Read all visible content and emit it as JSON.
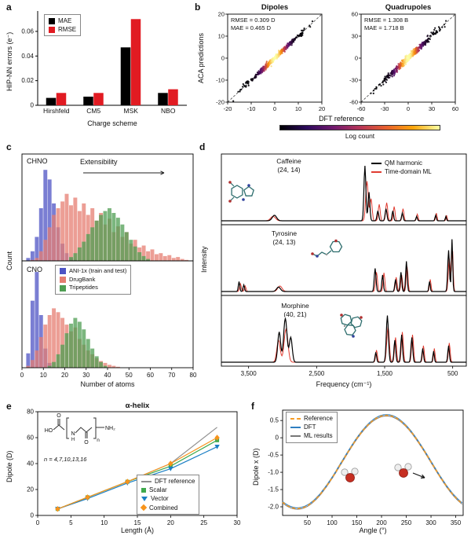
{
  "panels": {
    "a": {
      "label": "a"
    },
    "b": {
      "label": "b",
      "colorbar_label": "Log count",
      "colorbar_colors": [
        "#000004",
        "#2c0a5c",
        "#71196e",
        "#b63458",
        "#e8602d",
        "#fca50a",
        "#fcffa4"
      ]
    },
    "c": {
      "label": "c",
      "arrow_label": "Extensibility"
    },
    "d": {
      "label": "d"
    },
    "e": {
      "label": "e",
      "formula_note": "n = 4,7,10,13,16",
      "formula_atoms": {
        "ho": "HO",
        "o": "O",
        "n_atom": "N",
        "h": "H",
        "nh2": "NH₂",
        "sub": "n"
      }
    },
    "f": {
      "label": "f"
    }
  },
  "chart_data": [
    {
      "id": "a-charge-errors",
      "type": "bar",
      "xlabel": "Charge scheme",
      "ylabel": "HIP-NN errors (e⁻)",
      "categories": [
        "Hirshfeld",
        "CM5",
        "MSK",
        "NBO"
      ],
      "series": [
        {
          "name": "MAE",
          "color": "#000000",
          "values": [
            0.006,
            0.007,
            0.047,
            0.01
          ]
        },
        {
          "name": "RMSE",
          "color": "#e11b22",
          "values": [
            0.01,
            0.01,
            0.07,
            0.013
          ]
        }
      ],
      "ylim": [
        0,
        0.074
      ],
      "yticks": [
        0,
        0.02,
        0.04,
        0.06
      ],
      "ytick_labels": [
        "0",
        "0.02",
        "0.04",
        "0.06"
      ]
    },
    {
      "id": "b-dipoles",
      "type": "scatter",
      "title": "Dipoles",
      "xlabel": "DFT reference",
      "ylabel": "ACA predictions",
      "xlim": [
        -20,
        20
      ],
      "ylim": [
        -20,
        20
      ],
      "xticks": [
        -20,
        -10,
        0,
        10,
        20
      ],
      "yticks": [
        -20,
        -10,
        0,
        10,
        20
      ],
      "annotation": [
        "RMSE = 0.309 D",
        "MAE = 0.465 D"
      ],
      "identity_line": true,
      "cloud": {
        "n": 420,
        "spread": 6.5,
        "noise": 0.55,
        "seed": 7
      }
    },
    {
      "id": "b-quadrupoles",
      "type": "scatter",
      "title": "Quadrupoles",
      "xlabel": "DFT reference",
      "ylabel": "ACA predictions",
      "xlim": [
        -60,
        60
      ],
      "ylim": [
        -60,
        60
      ],
      "xticks": [
        -60,
        -30,
        0,
        30,
        60
      ],
      "yticks": [
        -60,
        -30,
        0,
        30,
        60
      ],
      "annotation": [
        "RMSE = 1.308 B",
        "MAE = 1.718 B"
      ],
      "identity_line": true,
      "cloud": {
        "n": 420,
        "spread": 19,
        "noise": 2.2,
        "seed": 13
      }
    },
    {
      "id": "c-chno",
      "type": "histogram",
      "tag": "CHNO",
      "ylabel": "Count",
      "xlim": [
        0,
        80
      ],
      "bin_width": 2,
      "ymax": 105,
      "series": [
        {
          "name": "ANI-1x (train and test)",
          "color": "#4d53c4",
          "counts": [
            0,
            3,
            10,
            25,
            55,
            95,
            85,
            60,
            35,
            18,
            8,
            3,
            1,
            0,
            0,
            0,
            0,
            0,
            0,
            0,
            0,
            0,
            0,
            0,
            0,
            0,
            0,
            0,
            0,
            0,
            0,
            0,
            0,
            0,
            0,
            0,
            0,
            0,
            0,
            0
          ]
        },
        {
          "name": "DrugBank",
          "color": "#e57e72",
          "counts": [
            0,
            0,
            1,
            3,
            10,
            22,
            35,
            48,
            55,
            62,
            70,
            58,
            66,
            52,
            60,
            48,
            55,
            42,
            50,
            38,
            44,
            30,
            36,
            25,
            30,
            18,
            22,
            14,
            16,
            10,
            12,
            7,
            8,
            5,
            6,
            3,
            4,
            2,
            1,
            0
          ]
        },
        {
          "name": "Tripeptides",
          "color": "#4f9e53",
          "counts": [
            0,
            0,
            0,
            0,
            0,
            0,
            0,
            0,
            0,
            0,
            0,
            4,
            8,
            14,
            20,
            28,
            35,
            42,
            48,
            52,
            55,
            50,
            45,
            38,
            30,
            22,
            15,
            9,
            5,
            2,
            0,
            0,
            0,
            0,
            0,
            0,
            0,
            0,
            0,
            0
          ]
        }
      ]
    },
    {
      "id": "c-cno",
      "type": "histogram",
      "tag": "CNO",
      "xlabel": "Number of atoms",
      "xlim": [
        0,
        80
      ],
      "bin_width": 2,
      "ymax": 105,
      "xticks": [
        0,
        10,
        20,
        30,
        40,
        50,
        60,
        70,
        80
      ],
      "series": [
        {
          "name": "ANI-1x (train and test)",
          "color": "#4d53c4",
          "counts": [
            0,
            15,
            70,
            100,
            55,
            20,
            5,
            0,
            0,
            0,
            0,
            0,
            0,
            0,
            0,
            0,
            0,
            0,
            0,
            0,
            0,
            0,
            0,
            0,
            0,
            0,
            0,
            0,
            0,
            0,
            0,
            0,
            0,
            0,
            0,
            0,
            0,
            0,
            0,
            0
          ]
        },
        {
          "name": "DrugBank",
          "color": "#e57e72",
          "counts": [
            0,
            2,
            8,
            18,
            32,
            45,
            55,
            62,
            58,
            52,
            45,
            38,
            42,
            30,
            24,
            18,
            14,
            10,
            7,
            5,
            3,
            2,
            1,
            0,
            0,
            0,
            0,
            0,
            0,
            0,
            0,
            0,
            0,
            0,
            0,
            0,
            0,
            0,
            0,
            0
          ]
        },
        {
          "name": "Tripeptides",
          "color": "#4f9e53",
          "counts": [
            0,
            0,
            0,
            0,
            0,
            0,
            2,
            6,
            14,
            24,
            36,
            46,
            52,
            48,
            40,
            30,
            20,
            12,
            6,
            2,
            0,
            0,
            0,
            0,
            0,
            0,
            0,
            0,
            0,
            0,
            0,
            0,
            0,
            0,
            0,
            0,
            0,
            0,
            0,
            0
          ]
        }
      ]
    },
    {
      "id": "d-spectra",
      "type": "spectra",
      "xlabel": "Frequency (cm⁻¹)",
      "ylabel": "Intensity",
      "xlim": [
        3900,
        300
      ],
      "xticks": [
        3500,
        2500,
        1500,
        500
      ],
      "xtick_labels": [
        "3,500",
        "2,500",
        "1,500",
        "500"
      ],
      "series_style": [
        {
          "name": "QM harmonic",
          "color": "#000000"
        },
        {
          "name": "Time-domain ML",
          "color": "#e03c31"
        }
      ],
      "rows": [
        {
          "molecule": "Caffeine",
          "label": "(24, 14)",
          "qm_peaks": [
            [
              3120,
              0.1,
              45
            ],
            [
              1790,
              1.0,
              20
            ],
            [
              1730,
              0.52,
              18
            ],
            [
              1600,
              0.18,
              18
            ],
            [
              1480,
              0.22,
              18
            ],
            [
              1380,
              0.18,
              16
            ],
            [
              1240,
              0.14,
              16
            ],
            [
              1030,
              0.08,
              14
            ],
            [
              750,
              0.1,
              14
            ],
            [
              600,
              0.08,
              12
            ]
          ],
          "ml_peaks": [
            [
              3140,
              0.08,
              50
            ],
            [
              1760,
              0.72,
              26
            ],
            [
              1700,
              0.4,
              22
            ],
            [
              1580,
              0.3,
              20
            ],
            [
              1470,
              0.33,
              20
            ],
            [
              1360,
              0.26,
              18
            ],
            [
              1230,
              0.22,
              18
            ],
            [
              1020,
              0.12,
              16
            ],
            [
              740,
              0.14,
              14
            ],
            [
              590,
              0.1,
              12
            ]
          ]
        },
        {
          "molecule": "Tyrosine",
          "label": "(24, 13)",
          "qm_peaks": [
            [
              3640,
              0.18,
              15
            ],
            [
              3570,
              0.12,
              15
            ],
            [
              3060,
              0.08,
              40
            ],
            [
              1640,
              0.42,
              18
            ],
            [
              1530,
              0.3,
              16
            ],
            [
              1340,
              0.22,
              16
            ],
            [
              1260,
              0.35,
              16
            ],
            [
              1180,
              0.55,
              16
            ],
            [
              840,
              0.18,
              14
            ],
            [
              560,
              0.75,
              18
            ],
            [
              510,
              0.95,
              14
            ]
          ],
          "ml_peaks": [
            [
              3620,
              0.14,
              18
            ],
            [
              3550,
              0.1,
              16
            ],
            [
              3040,
              0.1,
              45
            ],
            [
              1620,
              0.35,
              20
            ],
            [
              1510,
              0.34,
              18
            ],
            [
              1330,
              0.26,
              18
            ],
            [
              1250,
              0.3,
              18
            ],
            [
              1170,
              0.45,
              18
            ],
            [
              830,
              0.22,
              16
            ],
            [
              550,
              0.6,
              20
            ],
            [
              505,
              0.8,
              16
            ]
          ]
        },
        {
          "molecule": "Morphine",
          "label": "(40, 21)",
          "qm_peaks": [
            [
              3050,
              0.55,
              30
            ],
            [
              2960,
              0.8,
              35
            ],
            [
              2880,
              0.45,
              30
            ],
            [
              1630,
              0.18,
              16
            ],
            [
              1460,
              0.85,
              22
            ],
            [
              1350,
              0.4,
              18
            ],
            [
              1250,
              0.5,
              18
            ],
            [
              1100,
              0.45,
              18
            ],
            [
              940,
              0.25,
              16
            ],
            [
              780,
              0.2,
              14
            ],
            [
              560,
              0.3,
              16
            ]
          ],
          "ml_peaks": [
            [
              3060,
              0.4,
              35
            ],
            [
              2950,
              0.6,
              40
            ],
            [
              1620,
              0.22,
              18
            ],
            [
              1450,
              0.65,
              26
            ],
            [
              1340,
              0.45,
              20
            ],
            [
              1240,
              0.55,
              20
            ],
            [
              1090,
              0.5,
              20
            ],
            [
              930,
              0.3,
              18
            ],
            [
              770,
              0.25,
              16
            ],
            [
              550,
              0.35,
              18
            ]
          ]
        }
      ]
    },
    {
      "id": "e-helix-dipole",
      "type": "line",
      "title": "α-helix",
      "xlabel": "Length (Å)",
      "ylabel": "Dipole (D)",
      "x": [
        3,
        7.5,
        13.5,
        20,
        27
      ],
      "series": [
        {
          "name": "DFT reference",
          "color": "#909090",
          "marker": "none",
          "values": [
            5,
            14,
            26,
            40,
            68
          ]
        },
        {
          "name": "Scalar",
          "color": "#3fa94d",
          "marker": "square",
          "values": [
            5,
            14,
            26,
            38,
            58
          ]
        },
        {
          "name": "Vector",
          "color": "#1b7fc4",
          "marker": "triangle-down",
          "values": [
            5,
            13,
            25,
            36,
            53
          ]
        },
        {
          "name": "Combined",
          "color": "#f7941d",
          "marker": "diamond",
          "values": [
            5,
            14,
            26,
            40,
            60
          ]
        }
      ],
      "xlim": [
        0,
        30
      ],
      "ylim": [
        0,
        80
      ],
      "xticks": [
        0,
        5,
        10,
        15,
        20,
        25,
        30
      ],
      "yticks": [
        0,
        20,
        40,
        60,
        80
      ]
    },
    {
      "id": "f-angle-scan",
      "type": "curve",
      "xlabel": "Angle (°)",
      "ylabel": "Dipole x (D)",
      "xlim": [
        0,
        365
      ],
      "ylim": [
        -2.25,
        0.8
      ],
      "xticks": [
        50,
        100,
        150,
        200,
        250,
        300,
        350
      ],
      "yticks": [
        0.5,
        0,
        -0.5,
        -1,
        -1.5,
        -2
      ],
      "ytick_labels": [
        "0.5",
        "0",
        "-0.5",
        "-1.0",
        "-1.5",
        "-2.0"
      ],
      "model": {
        "offset": -0.7,
        "amplitude": 1.35,
        "peak_deg": 210
      },
      "offsets": [
        0,
        0.02,
        -0.02
      ],
      "series": [
        {
          "name": "Reference",
          "color": "#f59b23",
          "dash": "4,3",
          "width": 1.6
        },
        {
          "name": "DFT",
          "color": "#2f7fc1",
          "dash": "",
          "width": 1.2
        },
        {
          "name": "ML results",
          "color": "#777777",
          "dash": "",
          "width": 1
        }
      ]
    }
  ]
}
